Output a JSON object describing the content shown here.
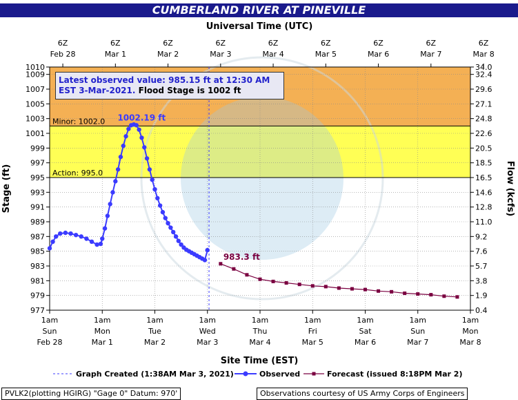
{
  "title": "CUMBERLAND RIVER AT PINEVILLE",
  "top_axis_title": "Universal Time (UTC)",
  "bottom_axis_title": "Site Time (EST)",
  "left_axis_title": "Stage (ft)",
  "right_axis_title": "Flow (kcfs)",
  "callout": {
    "line1": "Latest observed value: 985.15 ft at 12:30 AM",
    "line2_a": "EST 3-Mar-2021.",
    "line2_b": "Flood Stage is 1002 ft"
  },
  "footer_left": "PVLK2(plotting HGIRG) \"Gage 0\" Datum: 970'",
  "footer_right": "Observations courtesy of US Army Corps of Engineers",
  "legend": {
    "created": "Graph Created (1:38AM Mar 3, 2021)",
    "observed": "Observed",
    "forecast": "Forecast (issued 8:18PM Mar 2)"
  },
  "colors": {
    "moderate_band": "#f4b054",
    "minor_band": "#ffff55",
    "observed": "#3b3bff",
    "forecast": "#7a0040",
    "created_line": "#3b3bff"
  },
  "chart_data": {
    "type": "line",
    "x_unit": "days since Feb 28 12am EST",
    "xlim": [
      0,
      8
    ],
    "ylim": [
      977,
      1010
    ],
    "top_ticks": [
      {
        "x": 0.25,
        "l1": "6Z",
        "l2": "Feb 28"
      },
      {
        "x": 1.25,
        "l1": "6Z",
        "l2": "Mar 1"
      },
      {
        "x": 2.25,
        "l1": "6Z",
        "l2": "Mar 2"
      },
      {
        "x": 3.25,
        "l1": "6Z",
        "l2": "Mar 3"
      },
      {
        "x": 4.25,
        "l1": "6Z",
        "l2": "Mar 4"
      },
      {
        "x": 5.25,
        "l1": "6Z",
        "l2": "Mar 5"
      },
      {
        "x": 6.25,
        "l1": "6Z",
        "l2": "Mar 6"
      },
      {
        "x": 7.25,
        "l1": "6Z",
        "l2": "Mar 7"
      },
      {
        "x": 8.25,
        "l1": "6Z",
        "l2": "Mar 8"
      }
    ],
    "bottom_ticks": [
      {
        "x": 0,
        "l1": "1am",
        "l2": "Sun",
        "l3": "Feb 28"
      },
      {
        "x": 1,
        "l1": "1am",
        "l2": "Mon",
        "l3": "Mar 1"
      },
      {
        "x": 2,
        "l1": "1am",
        "l2": "Tue",
        "l3": "Mar 2"
      },
      {
        "x": 3,
        "l1": "1am",
        "l2": "Wed",
        "l3": "Mar 3"
      },
      {
        "x": 4,
        "l1": "1am",
        "l2": "Thu",
        "l3": "Mar 4"
      },
      {
        "x": 5,
        "l1": "1am",
        "l2": "Fri",
        "l3": "Mar 5"
      },
      {
        "x": 6,
        "l1": "1am",
        "l2": "Sat",
        "l3": "Mar 6"
      },
      {
        "x": 7,
        "l1": "1am",
        "l2": "Sun",
        "l3": "Mar 7"
      },
      {
        "x": 8,
        "l1": "1am",
        "l2": "Mon",
        "l3": "Mar 8"
      }
    ],
    "left_ticks": [
      977,
      979,
      981,
      983,
      985,
      987,
      989,
      991,
      993,
      995,
      997,
      999,
      1001,
      1003,
      1005,
      1007,
      1009,
      1010
    ],
    "right_ticks": [
      {
        "stage": 977,
        "label": "0.4"
      },
      {
        "stage": 979,
        "label": "1.9"
      },
      {
        "stage": 981,
        "label": "3.8"
      },
      {
        "stage": 983,
        "label": "5.7"
      },
      {
        "stage": 985,
        "label": "7.6"
      },
      {
        "stage": 987,
        "label": "9.2"
      },
      {
        "stage": 989,
        "label": "11.0"
      },
      {
        "stage": 991,
        "label": "12.8"
      },
      {
        "stage": 993,
        "label": "14.6"
      },
      {
        "stage": 995,
        "label": "16.5"
      },
      {
        "stage": 997,
        "label": "18.5"
      },
      {
        "stage": 999,
        "label": "20.5"
      },
      {
        "stage": 1001,
        "label": "22.6"
      },
      {
        "stage": 1003,
        "label": "24.8"
      },
      {
        "stage": 1005,
        "label": "27.1"
      },
      {
        "stage": 1007,
        "label": "29.6"
      },
      {
        "stage": 1009,
        "label": "32.4"
      },
      {
        "stage": 1010,
        "label": "34.0"
      }
    ],
    "minor_stage": 1002.0,
    "action_stage": 995.0,
    "minor_label": "Minor: 1002.0",
    "action_label": "Action: 995.0",
    "created_x": 3.03,
    "observed_x": [
      0,
      0.06,
      0.12,
      0.2,
      0.3,
      0.4,
      0.5,
      0.6,
      0.7,
      0.8,
      0.9,
      0.97,
      1.0,
      1.05,
      1.1,
      1.15,
      1.2,
      1.25,
      1.3,
      1.35,
      1.4,
      1.45,
      1.5,
      1.55,
      1.6,
      1.65,
      1.7,
      1.75,
      1.8,
      1.85,
      1.9,
      1.95,
      2.0,
      2.05,
      2.1,
      2.15,
      2.2,
      2.25,
      2.3,
      2.35,
      2.4,
      2.45,
      2.5,
      2.55,
      2.6,
      2.65,
      2.7,
      2.75,
      2.8,
      2.85,
      2.9,
      2.95,
      3.0
    ],
    "observed_y": [
      985.4,
      986.3,
      987.0,
      987.4,
      987.5,
      987.4,
      987.2,
      987.0,
      986.7,
      986.3,
      985.9,
      986.0,
      986.7,
      988.1,
      989.8,
      991.4,
      993.0,
      994.5,
      996.1,
      997.8,
      999.3,
      1000.6,
      1001.6,
      1002.1,
      1002.2,
      1002.1,
      1001.5,
      1000.4,
      999.1,
      997.6,
      996.1,
      994.7,
      993.4,
      992.2,
      991.2,
      990.3,
      989.5,
      988.8,
      988.2,
      987.6,
      987.0,
      986.4,
      985.9,
      985.5,
      985.2,
      985.0,
      984.8,
      984.6,
      984.4,
      984.2,
      984.0,
      983.8,
      985.15
    ],
    "forecast_x": [
      3.25,
      3.5,
      3.75,
      4.0,
      4.25,
      4.5,
      4.75,
      5.0,
      5.25,
      5.5,
      5.75,
      6.0,
      6.25,
      6.5,
      6.75,
      7.0,
      7.25,
      7.5,
      7.75
    ],
    "forecast_y": [
      983.3,
      982.6,
      981.8,
      981.2,
      980.9,
      980.7,
      980.5,
      980.3,
      980.2,
      980.0,
      979.9,
      979.8,
      979.6,
      979.5,
      979.3,
      979.2,
      979.1,
      978.9,
      978.8
    ],
    "peak_label": "1002.19 ft",
    "peak_x": 1.75,
    "peak_y": 1002.19,
    "fc_label": "983.3 ft",
    "fc_label_x": 3.25,
    "fc_label_y": 983.3
  }
}
